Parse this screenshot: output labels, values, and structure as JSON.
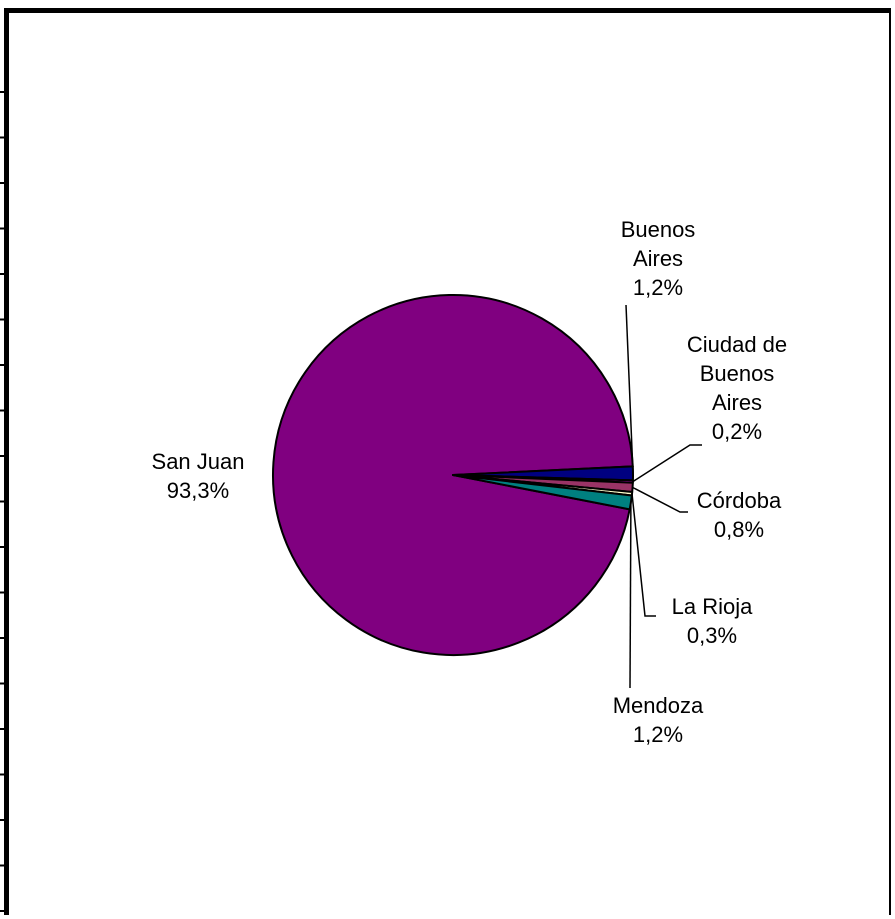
{
  "chart_data": {
    "type": "pie",
    "title": "",
    "slices": [
      {
        "label": "San Juan",
        "value": 93.3,
        "value_label": "93,3%",
        "color": "#800080"
      },
      {
        "label": "Buenos Aires",
        "value": 1.2,
        "value_label": "1,2%",
        "color": "#000080"
      },
      {
        "label": "Ciudad de Buenos Aires",
        "value": 0.2,
        "value_label": "0,2%",
        "color": "#ff00ff"
      },
      {
        "label": "Córdoba",
        "value": 0.8,
        "value_label": "0,8%",
        "color": "#993366"
      },
      {
        "label": "La Rioja",
        "value": 0.3,
        "value_label": "0,3%",
        "color": "#ffffcc"
      },
      {
        "label": "Mendoza",
        "value": 1.2,
        "value_label": "1,2%",
        "color": "#008080"
      }
    ],
    "legend": "none"
  }
}
